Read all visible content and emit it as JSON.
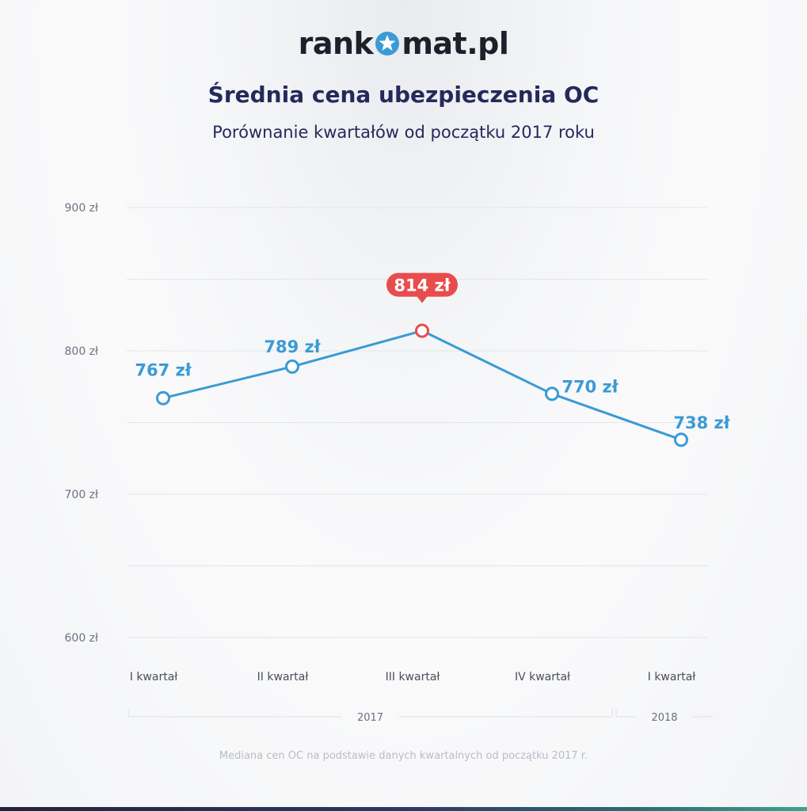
{
  "header": {
    "logo_left": "rank",
    "logo_right": "mat.pl",
    "title": "Średnia cena ubezpieczenia OC",
    "subtitle": "Porównanie kwartałów od początku 2017 roku"
  },
  "footer": {
    "note": "Mediana cen OC na podstawie danych kwartalnych od początku 2017 r."
  },
  "colors": {
    "line": "#3a9bd5",
    "highlight": "#e84c4c",
    "title": "#25295a",
    "grid": "#e3e5ea",
    "axis_text": "#6d7080"
  },
  "chart_data": {
    "type": "line",
    "categories": [
      "I kwartał",
      "II kwartał",
      "III kwartał",
      "IV kwartał",
      "I kwartał"
    ],
    "values": [
      767,
      789,
      814,
      770,
      738
    ],
    "value_labels": [
      "767 zł",
      "789 zł",
      "814 zł",
      "770 zł",
      "738 zł"
    ],
    "highlight_index": 2,
    "ylim": [
      600,
      900
    ],
    "yticks": [
      {
        "value": 600,
        "label": "600 zł"
      },
      {
        "value": 700,
        "label": "700 zł"
      },
      {
        "value": 800,
        "label": "800 zł"
      },
      {
        "value": 900,
        "label": "900 zł"
      }
    ],
    "gridlines": [
      600,
      650,
      700,
      750,
      800,
      850,
      900
    ],
    "year_groups": [
      {
        "label": "2017",
        "start_index": 0,
        "end_index": 3
      },
      {
        "label": "2018",
        "start_index": 4,
        "end_index": 4
      }
    ],
    "grid": true
  }
}
